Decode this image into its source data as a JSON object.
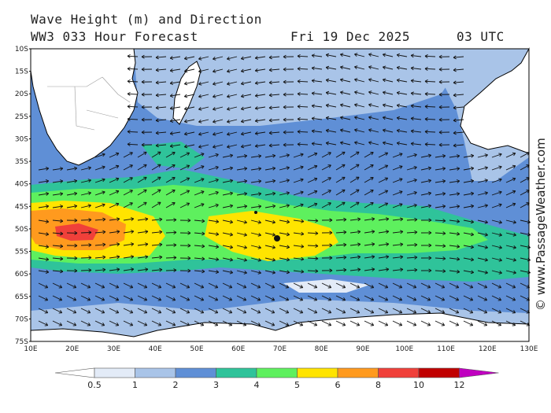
{
  "header": {
    "title": "Wave Height (m) and Direction",
    "model": "WW3 033 Hour Forecast",
    "date": "Fri 19 Dec 2025",
    "time": "03 UTC"
  },
  "credit": "© www.PassageWeather.com",
  "map": {
    "lat_labels": [
      "10S",
      "15S",
      "20S",
      "25S",
      "30S",
      "35S",
      "40S",
      "45S",
      "50S",
      "55S",
      "60S",
      "65S",
      "70S",
      "75S"
    ],
    "lon_labels": [
      "10E",
      "20E",
      "30E",
      "40E",
      "50E",
      "60E",
      "70E",
      "80E",
      "90E",
      "100E",
      "110E",
      "120E",
      "130E"
    ],
    "colors": {
      "land": "#ffffff",
      "coast": "#000000",
      "arrow": "#111111"
    }
  },
  "legend": {
    "labels": [
      "0.5",
      "1",
      "2",
      "3",
      "4",
      "5",
      "6",
      "8",
      "10",
      "12"
    ],
    "colors": [
      "#e3ebf7",
      "#a9c4e8",
      "#5f8fd6",
      "#2fc39a",
      "#5ef05e",
      "#ffe400",
      "#ff9a1e",
      "#f0403a",
      "#c00000",
      "#c000c0"
    ]
  }
}
